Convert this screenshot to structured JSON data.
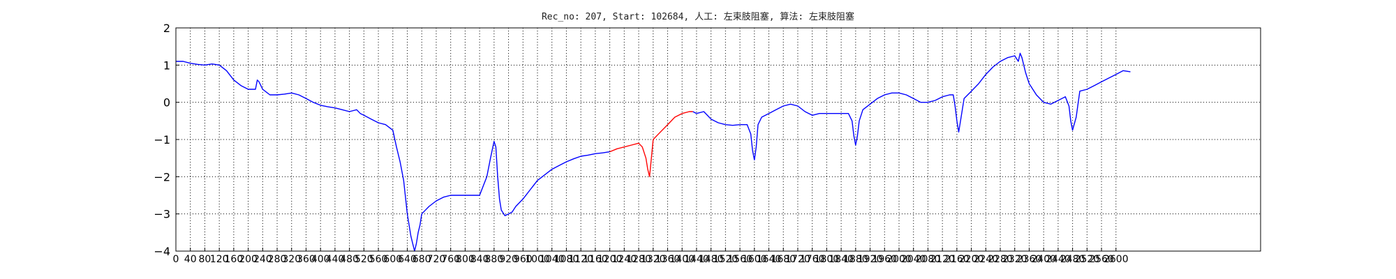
{
  "chart_data": {
    "type": "line",
    "title": "Rec_no: 207, Start: 102684, 人工: 左束肢阻塞, 算法: 左束肢阻塞",
    "xlabel": "",
    "ylabel": "",
    "xlim": [
      0,
      3000
    ],
    "ylim": [
      -4,
      2
    ],
    "grid": true,
    "grid_style": "dotted",
    "y_ticks": [
      2,
      1,
      0,
      -1,
      -2,
      -3,
      -4
    ],
    "x_ticks": [
      0,
      40,
      80,
      120,
      160,
      200,
      240,
      280,
      320,
      360,
      400,
      440,
      480,
      520,
      560,
      600,
      640,
      680,
      720,
      760,
      800,
      840,
      880,
      920,
      960,
      1000,
      1040,
      1080,
      1120,
      1160,
      1200,
      1240,
      1280,
      1320,
      1360,
      1400,
      1440,
      1480,
      1520,
      1560,
      1600,
      1640,
      1680,
      1720,
      1760,
      1800,
      1840,
      1880,
      1920,
      1960,
      2000,
      2040,
      2080,
      2120,
      2160,
      2200,
      2240,
      2280,
      2320,
      2360,
      2400,
      2440,
      2480,
      2520,
      2560,
      2600
    ],
    "colors": {
      "normal": "#0000ff",
      "highlight": "#ff0000"
    },
    "series": [
      {
        "color": "#0000ff",
        "x": [
          0,
          20,
          40,
          60,
          80,
          100,
          120,
          140,
          160,
          180,
          200,
          220,
          225,
          230,
          240,
          260,
          280,
          300,
          320,
          340,
          360,
          380,
          400,
          420,
          440,
          460,
          480,
          500,
          510,
          520,
          540,
          560,
          580,
          600,
          610,
          620,
          630,
          640,
          650,
          660,
          665,
          670,
          675,
          680,
          690,
          700,
          720,
          740,
          760,
          780,
          800,
          820,
          840,
          860,
          870,
          880,
          885,
          890,
          895,
          900,
          910,
          920,
          930,
          940,
          960,
          980,
          1000,
          1020,
          1040,
          1060,
          1080,
          1100,
          1120,
          1140,
          1160,
          1180,
          1200
        ],
        "y": [
          1.1,
          1.1,
          1.05,
          1.02,
          1.0,
          1.03,
          1.0,
          0.85,
          0.6,
          0.45,
          0.35,
          0.35,
          0.6,
          0.55,
          0.35,
          0.2,
          0.2,
          0.22,
          0.25,
          0.2,
          0.1,
          0.0,
          -0.08,
          -0.12,
          -0.15,
          -0.2,
          -0.25,
          -0.2,
          -0.3,
          -0.35,
          -0.45,
          -0.55,
          -0.6,
          -0.75,
          -1.2,
          -1.6,
          -2.1,
          -3.0,
          -3.6,
          -4.0,
          -3.8,
          -3.5,
          -3.3,
          -3.0,
          -2.9,
          -2.8,
          -2.65,
          -2.55,
          -2.5,
          -2.5,
          -2.5,
          -2.5,
          -2.5,
          -2.0,
          -1.5,
          -1.05,
          -1.2,
          -2.0,
          -2.6,
          -2.9,
          -3.05,
          -3.0,
          -2.95,
          -2.8,
          -2.6,
          -2.35,
          -2.1,
          -1.95,
          -1.8,
          -1.7,
          -1.6,
          -1.52,
          -1.45,
          -1.42,
          -1.38,
          -1.36,
          -1.33
        ]
      },
      {
        "color": "#ff0000",
        "x": [
          1200,
          1220,
          1240,
          1260,
          1280,
          1290,
          1300,
          1305,
          1310,
          1315,
          1320,
          1330,
          1340,
          1360,
          1380,
          1400,
          1420,
          1430
        ],
        "y": [
          -1.33,
          -1.25,
          -1.2,
          -1.15,
          -1.1,
          -1.2,
          -1.5,
          -1.8,
          -2.0,
          -1.5,
          -1.0,
          -0.9,
          -0.8,
          -0.6,
          -0.4,
          -0.3,
          -0.25,
          -0.25
        ]
      },
      {
        "color": "#0000ff",
        "x": [
          1430,
          1440,
          1460,
          1480,
          1500,
          1520,
          1540,
          1560,
          1580,
          1590,
          1595,
          1600,
          1605,
          1610,
          1620,
          1640,
          1660,
          1680,
          1700,
          1720,
          1740,
          1760,
          1780,
          1800,
          1820,
          1840,
          1860,
          1870,
          1875,
          1880,
          1885,
          1890,
          1900,
          1920,
          1940,
          1960,
          1980,
          2000,
          2020,
          2040,
          2060,
          2080,
          2100,
          2120,
          2140,
          2150,
          2155,
          2160,
          2165,
          2170,
          2180,
          2200,
          2220,
          2240,
          2260,
          2280,
          2300,
          2320,
          2330,
          2335,
          2340,
          2350,
          2360,
          2380,
          2400,
          2420,
          2440,
          2460,
          2470,
          2475,
          2480,
          2490,
          2500,
          2520,
          2540,
          2560,
          2580,
          2600,
          2620,
          2640
        ],
        "y": [
          -0.25,
          -0.3,
          -0.25,
          -0.45,
          -0.55,
          -0.6,
          -0.62,
          -0.6,
          -0.6,
          -0.85,
          -1.3,
          -1.55,
          -1.2,
          -0.6,
          -0.4,
          -0.3,
          -0.2,
          -0.1,
          -0.05,
          -0.1,
          -0.25,
          -0.35,
          -0.3,
          -0.3,
          -0.3,
          -0.3,
          -0.3,
          -0.5,
          -0.9,
          -1.15,
          -0.9,
          -0.5,
          -0.2,
          -0.05,
          0.1,
          0.2,
          0.25,
          0.25,
          0.2,
          0.1,
          0.0,
          0.0,
          0.05,
          0.15,
          0.2,
          0.2,
          -0.1,
          -0.5,
          -0.8,
          -0.5,
          0.1,
          0.3,
          0.5,
          0.75,
          0.95,
          1.1,
          1.2,
          1.25,
          1.1,
          1.32,
          1.2,
          0.8,
          0.5,
          0.2,
          0.0,
          -0.05,
          0.05,
          0.15,
          -0.1,
          -0.5,
          -0.75,
          -0.4,
          0.3,
          0.35,
          0.45,
          0.55,
          0.65,
          0.75,
          0.85,
          0.82
        ]
      }
    ]
  }
}
